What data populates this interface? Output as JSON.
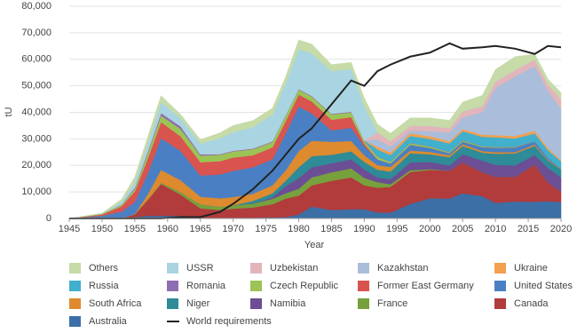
{
  "chart_data": {
    "type": "stacked_area",
    "x_label": "Year",
    "y_label": "tU",
    "x": [
      1945,
      1950,
      1953,
      1955,
      1957,
      1959,
      1962,
      1965,
      1968,
      1970,
      1973,
      1976,
      1978,
      1980,
      1982,
      1985,
      1988,
      1990,
      1992,
      1994,
      1997,
      2000,
      2003,
      2005,
      2008,
      2010,
      2013,
      2016,
      2018,
      2020
    ],
    "xlim": [
      1945,
      2020
    ],
    "xticks": [
      1945,
      1950,
      1955,
      1960,
      1965,
      1970,
      1975,
      1980,
      1985,
      1990,
      1995,
      2000,
      2005,
      2010,
      2015,
      2020
    ],
    "ylim": [
      0,
      80000
    ],
    "yticks": [
      0,
      {
        "value": 10000,
        "label": "10,000"
      },
      {
        "value": 20000,
        "label": "20,000"
      },
      {
        "value": 30000,
        "label": "30,000"
      },
      {
        "value": 40000,
        "label": "40,000"
      },
      {
        "value": 50000,
        "label": "50,000"
      },
      {
        "value": 60000,
        "label": "60,000"
      },
      {
        "value": 70000,
        "label": "70,000"
      },
      {
        "value": 80000,
        "label": "80,000"
      }
    ],
    "grid": true,
    "series": [
      {
        "name": "Others",
        "color": "#c6dba8",
        "values": [
          0,
          200,
          1000,
          2000,
          2500,
          2500,
          1500,
          1500,
          2000,
          2500,
          2500,
          2500,
          2500,
          3500,
          3500,
          2500,
          2500,
          3000,
          3000,
          3000,
          3000,
          3000,
          3000,
          3500,
          4000,
          4500,
          5000,
          2000,
          2000,
          2500
        ]
      },
      {
        "name": "USSR",
        "color": "#a9d4e2",
        "values": [
          0,
          0,
          1000,
          2000,
          3000,
          4000,
          3000,
          4000,
          6000,
          7000,
          8000,
          10000,
          12000,
          15000,
          16000,
          16000,
          16000,
          13000,
          0,
          0,
          0,
          0,
          0,
          0,
          0,
          0,
          0,
          0,
          0,
          0
        ]
      },
      {
        "name": "Uzbekistan",
        "color": "#e2b5ba",
        "values": [
          0,
          0,
          0,
          0,
          0,
          0,
          0,
          0,
          0,
          0,
          0,
          0,
          0,
          0,
          0,
          0,
          0,
          0,
          2700,
          2000,
          1800,
          2000,
          1600,
          2300,
          2300,
          2400,
          2400,
          2400,
          2400,
          3500
        ]
      },
      {
        "name": "Kazakhstan",
        "color": "#aabdda",
        "values": [
          0,
          0,
          0,
          0,
          0,
          0,
          0,
          0,
          0,
          0,
          0,
          0,
          0,
          0,
          0,
          0,
          0,
          0,
          2800,
          2200,
          1000,
          1900,
          3300,
          4400,
          8500,
          17800,
          22500,
          24500,
          21700,
          19500
        ]
      },
      {
        "name": "Ukraine",
        "color": "#f2a04e",
        "values": [
          0,
          0,
          0,
          0,
          0,
          0,
          0,
          0,
          0,
          0,
          0,
          0,
          0,
          0,
          0,
          0,
          0,
          0,
          1000,
          1000,
          1000,
          1000,
          800,
          800,
          800,
          850,
          900,
          1000,
          800,
          400
        ]
      },
      {
        "name": "Russia",
        "color": "#40b0cc",
        "values": [
          0,
          0,
          0,
          0,
          0,
          0,
          0,
          0,
          0,
          0,
          0,
          0,
          0,
          0,
          0,
          0,
          0,
          0,
          2600,
          2500,
          2600,
          2800,
          3200,
          3400,
          3500,
          3560,
          3100,
          3000,
          2900,
          2800
        ]
      },
      {
        "name": "Romania",
        "color": "#8f6db2",
        "values": [
          0,
          0,
          200,
          500,
          700,
          1000,
          1000,
          500,
          300,
          300,
          300,
          300,
          300,
          300,
          300,
          300,
          300,
          200,
          120,
          100,
          100,
          100,
          100,
          90,
          80,
          80,
          80,
          50,
          0,
          0
        ]
      },
      {
        "name": "Czech Republic",
        "color": "#9bc455",
        "values": [
          0,
          300,
          500,
          1000,
          2000,
          2500,
          2800,
          2500,
          2400,
          2300,
          2300,
          2000,
          2000,
          1800,
          1800,
          2000,
          1800,
          1000,
          1000,
          600,
          600,
          500,
          400,
          400,
          300,
          250,
          200,
          0,
          0,
          0
        ]
      },
      {
        "name": "Former East Germany",
        "color": "#d9534f",
        "values": [
          0,
          500,
          2000,
          4000,
          5500,
          6000,
          5500,
          5000,
          5000,
          5000,
          4500,
          4500,
          4500,
          4500,
          4500,
          4000,
          4000,
          1000,
          0,
          0,
          0,
          0,
          0,
          0,
          0,
          0,
          0,
          0,
          0,
          0
        ]
      },
      {
        "name": "United States",
        "color": "#4a80c3",
        "values": [
          0,
          1000,
          2500,
          4500,
          8000,
          12000,
          11000,
          8000,
          9000,
          9900,
          10000,
          9800,
          14000,
          16800,
          10300,
          4300,
          5000,
          3400,
          2200,
          1300,
          2200,
          1500,
          800,
          1000,
          1500,
          1700,
          1800,
          1100,
          600,
          0
        ]
      },
      {
        "name": "South Africa",
        "color": "#de8a2e",
        "values": [
          0,
          0,
          0,
          100,
          2000,
          4900,
          4500,
          2900,
          3200,
          3100,
          2700,
          3000,
          3900,
          6100,
          5800,
          4900,
          3900,
          2500,
          1700,
          1700,
          1000,
          900,
          700,
          700,
          600,
          600,
          500,
          500,
          300,
          200
        ]
      },
      {
        "name": "Niger",
        "color": "#2e8b97",
        "values": [
          0,
          0,
          0,
          0,
          0,
          0,
          0,
          0,
          0,
          0,
          1000,
          1500,
          2000,
          4100,
          4200,
          3200,
          3000,
          2800,
          3000,
          2900,
          3500,
          2900,
          3100,
          3100,
          3000,
          4200,
          4500,
          3500,
          2900,
          3000
        ]
      },
      {
        "name": "Namibia",
        "color": "#6b4e94",
        "values": [
          0,
          0,
          0,
          0,
          0,
          0,
          0,
          0,
          0,
          0,
          0,
          600,
          2700,
          4000,
          3800,
          3400,
          3400,
          3200,
          1700,
          1900,
          2900,
          2700,
          2000,
          3100,
          4400,
          4500,
          4300,
          3600,
          5500,
          5400
        ]
      },
      {
        "name": "France",
        "color": "#77a13d",
        "values": [
          0,
          0,
          0,
          100,
          200,
          400,
          900,
          1500,
          1200,
          1250,
          1500,
          2000,
          2000,
          2600,
          3000,
          3200,
          3400,
          2800,
          2100,
          1000,
          700,
          300,
          0,
          0,
          0,
          0,
          0,
          0,
          0,
          0
        ]
      },
      {
        "name": "Canada",
        "color": "#b23b3b",
        "values": [
          0,
          0,
          100,
          1000,
          6000,
          12000,
          8000,
          3500,
          3000,
          3500,
          3800,
          5000,
          7000,
          7100,
          8000,
          11000,
          12000,
          9000,
          9300,
          9700,
          12000,
          10700,
          10500,
          11600,
          9000,
          9800,
          9300,
          14000,
          7000,
          3900
        ]
      },
      {
        "name": "Australia",
        "color": "#3b6fa6",
        "values": [
          0,
          0,
          0,
          500,
          1000,
          1000,
          1000,
          300,
          200,
          200,
          300,
          400,
          500,
          1500,
          4500,
          3200,
          3500,
          3500,
          2300,
          2200,
          5500,
          7600,
          7500,
          9500,
          8400,
          5900,
          6400,
          6300,
          6500,
          6200
        ]
      }
    ],
    "line": {
      "name": "World requirements",
      "color": "#222222",
      "values": [
        0,
        0,
        0,
        0,
        0,
        0,
        500,
        500,
        2500,
        5500,
        11000,
        18000,
        24000,
        30000,
        34000,
        43000,
        52000,
        50000,
        55500,
        58000,
        61000,
        62500,
        66000,
        64000,
        64500,
        65000,
        64000,
        62000,
        65000,
        64500
      ]
    }
  }
}
